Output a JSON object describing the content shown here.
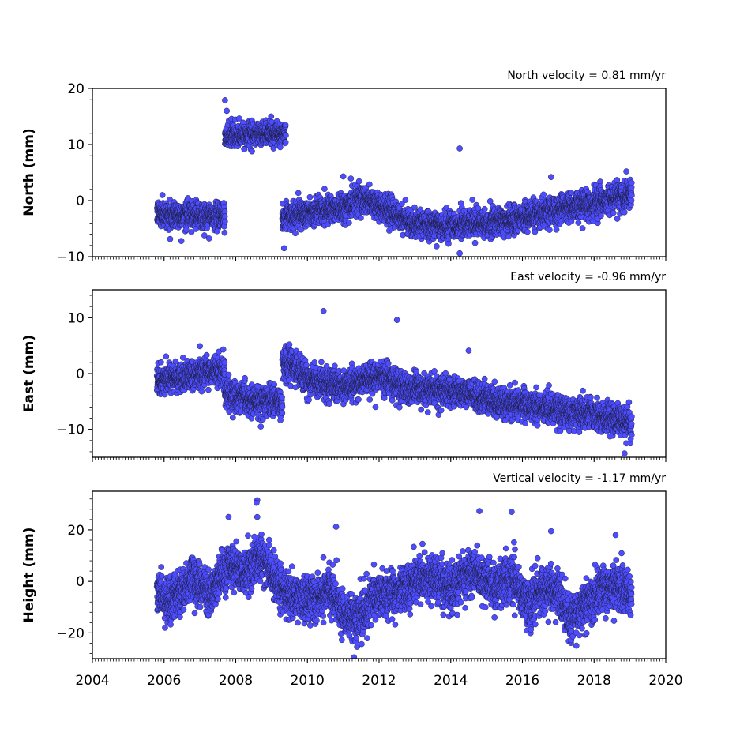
{
  "chart_data": [
    {
      "type": "scatter",
      "title": "North velocity = 0.81 mm/yr",
      "ylabel": "North (mm)",
      "xlabel": "",
      "xlim": [
        2004,
        2020
      ],
      "ylim": [
        -10,
        20
      ],
      "yticks": [
        -10,
        0,
        10,
        20
      ],
      "ytick_labels": [
        "−10",
        "0",
        "10",
        "20"
      ],
      "grid": false,
      "series": [
        {
          "color": "#4d4dff",
          "segments": [
            {
              "x_start": 2005.8,
              "x_end": 2007.7,
              "trend": [
                [
                  2005.8,
                  -2.2
                ],
                [
                  2006.5,
                  -2.6
                ],
                [
                  2007.2,
                  -2.8
                ],
                [
                  2007.7,
                  -2.6
                ]
              ],
              "scatter": 1.1
            },
            {
              "x_start": 2007.7,
              "x_end": 2009.4,
              "trend": [
                [
                  2007.7,
                  11.5
                ],
                [
                  2008.5,
                  11.8
                ],
                [
                  2009.4,
                  12.0
                ]
              ],
              "scatter": 1.0
            },
            {
              "x_start": 2009.3,
              "x_end": 2012.5,
              "trend": [
                [
                  2009.3,
                  -3.0
                ],
                [
                  2010.0,
                  -2.0
                ],
                [
                  2011.0,
                  -1.5
                ],
                [
                  2011.5,
                  0.5
                ],
                [
                  2012.0,
                  -0.8
                ],
                [
                  2012.5,
                  -2.5
                ]
              ],
              "scatter": 1.2
            },
            {
              "x_start": 2012.5,
              "x_end": 2019.05,
              "trend": [
                [
                  2012.5,
                  -2.5
                ],
                [
                  2013.0,
                  -4.2
                ],
                [
                  2014.0,
                  -4.5
                ],
                [
                  2015.0,
                  -4.0
                ],
                [
                  2016.0,
                  -3.0
                ],
                [
                  2017.0,
                  -1.5
                ],
                [
                  2018.0,
                  -0.5
                ],
                [
                  2019.05,
                  1.2
                ]
              ],
              "scatter": 1.2
            }
          ],
          "outliers": [
            [
              2007.7,
              17.9
            ],
            [
              2007.75,
              16.0
            ],
            [
              2014.25,
              9.3
            ],
            [
              2014.25,
              -9.4
            ],
            [
              2009.35,
              -8.5
            ],
            [
              2018.9,
              5.2
            ],
            [
              2016.8,
              4.2
            ],
            [
              2011.0,
              4.3
            ]
          ]
        }
      ]
    },
    {
      "type": "scatter",
      "title": "East velocity = -0.96 mm/yr",
      "ylabel": "East (mm)",
      "xlabel": "",
      "xlim": [
        2004,
        2020
      ],
      "ylim": [
        -15,
        15
      ],
      "yticks": [
        -10,
        0,
        10
      ],
      "ytick_labels": [
        "−10",
        "0",
        "10"
      ],
      "grid": false,
      "series": [
        {
          "color": "#4d4dff",
          "segments": [
            {
              "x_start": 2005.8,
              "x_end": 2007.7,
              "trend": [
                [
                  2005.8,
                  -1.2
                ],
                [
                  2006.6,
                  -0.6
                ],
                [
                  2007.3,
                  0.3
                ],
                [
                  2007.7,
                  0.4
                ]
              ],
              "scatter": 1.2
            },
            {
              "x_start": 2007.7,
              "x_end": 2009.3,
              "trend": [
                [
                  2007.7,
                  -3.5
                ],
                [
                  2008.3,
                  -4.5
                ],
                [
                  2008.8,
                  -5.0
                ],
                [
                  2009.3,
                  -5.0
                ]
              ],
              "scatter": 1.3
            },
            {
              "x_start": 2009.3,
              "x_end": 2019.05,
              "trend": [
                [
                  2009.3,
                  2.0
                ],
                [
                  2009.6,
                  1.5
                ],
                [
                  2010.0,
                  -1.0
                ],
                [
                  2011.0,
                  -2.3
                ],
                [
                  2012.0,
                  -0.5
                ],
                [
                  2012.5,
                  -2.0
                ],
                [
                  2013.0,
                  -2.8
                ],
                [
                  2014.0,
                  -3.0
                ],
                [
                  2015.0,
                  -4.5
                ],
                [
                  2016.0,
                  -5.5
                ],
                [
                  2017.0,
                  -6.5
                ],
                [
                  2018.0,
                  -7.5
                ],
                [
                  2018.8,
                  -8.5
                ],
                [
                  2019.05,
                  -9.5
                ]
              ],
              "scatter": 1.3
            }
          ],
          "outliers": [
            [
              2010.45,
              11.2
            ],
            [
              2012.5,
              9.6
            ],
            [
              2007.0,
              4.9
            ],
            [
              2014.5,
              4.1
            ],
            [
              2018.9,
              -12.5
            ],
            [
              2018.85,
              -14.3
            ],
            [
              2008.7,
              -9.5
            ],
            [
              2011.9,
              -6.0
            ]
          ]
        }
      ]
    },
    {
      "type": "scatter",
      "title": "Vertical velocity = -1.17 mm/yr",
      "ylabel": "Height (mm)",
      "xlabel": "",
      "xlim": [
        2004,
        2020
      ],
      "ylim": [
        -30,
        35
      ],
      "yticks": [
        -20,
        0,
        20
      ],
      "ytick_labels": [
        "−20",
        "0",
        "20"
      ],
      "xticks": [
        2004,
        2006,
        2008,
        2010,
        2012,
        2014,
        2016,
        2018,
        2020
      ],
      "xtick_labels": [
        "2004",
        "2006",
        "2008",
        "2010",
        "2012",
        "2014",
        "2016",
        "2018",
        "2020"
      ],
      "grid": false,
      "series": [
        {
          "color": "#4d4dff",
          "segments": [
            {
              "x_start": 2005.8,
              "x_end": 2019.05,
              "trend": [
                [
                  2005.8,
                  -4
                ],
                [
                  2006.2,
                  -8
                ],
                [
                  2006.8,
                  2
                ],
                [
                  2007.2,
                  -5
                ],
                [
                  2007.8,
                  6
                ],
                [
                  2008.3,
                  3
                ],
                [
                  2008.7,
                  10
                ],
                [
                  2009.2,
                  -2
                ],
                [
                  2009.6,
                  -6
                ],
                [
                  2010.2,
                  -7
                ],
                [
                  2010.6,
                  -3
                ],
                [
                  2011.0,
                  -13
                ],
                [
                  2011.3,
                  -16
                ],
                [
                  2011.8,
                  -7
                ],
                [
                  2012.4,
                  -4
                ],
                [
                  2012.9,
                  -1
                ],
                [
                  2013.5,
                  2
                ],
                [
                  2014.0,
                  -3
                ],
                [
                  2014.6,
                  4
                ],
                [
                  2015.2,
                  -2
                ],
                [
                  2015.7,
                  2
                ],
                [
                  2016.2,
                  -10
                ],
                [
                  2016.6,
                  -2
                ],
                [
                  2017.0,
                  -5
                ],
                [
                  2017.3,
                  -15
                ],
                [
                  2017.8,
                  -8
                ],
                [
                  2018.3,
                  -3
                ],
                [
                  2018.7,
                  -2
                ],
                [
                  2019.05,
                  -7
                ]
              ],
              "scatter": 4.3
            }
          ],
          "outliers": [
            [
              2008.6,
              31.5
            ],
            [
              2008.58,
              30.5
            ],
            [
              2014.8,
              27.3
            ],
            [
              2015.7,
              27.0
            ],
            [
              2010.8,
              21.2
            ],
            [
              2008.6,
              25.0
            ],
            [
              2007.8,
              25.0
            ],
            [
              2011.3,
              -29.5
            ],
            [
              2016.8,
              19.5
            ],
            [
              2018.6,
              18.0
            ]
          ]
        }
      ]
    }
  ]
}
